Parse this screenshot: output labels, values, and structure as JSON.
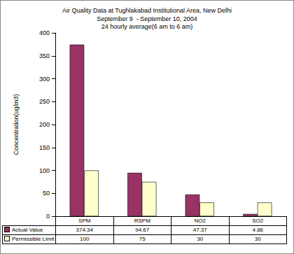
{
  "chart_data": {
    "type": "bar",
    "title": "Air Quality Data at Tughlakabad Institutional Area, New Delhi",
    "subtitle": "September 9  - September 10, 2004\n24 hourly average(6 am to 6 am)",
    "y_label": "Concentration(ug/m3)",
    "categories": [
      "SPM",
      "RSPM",
      "NO2",
      "SO2"
    ],
    "series": [
      {
        "name": "Actual Value",
        "color": "#993366",
        "values": [
          374.34,
          94.67,
          47.37,
          4.86
        ]
      },
      {
        "name": "Permissible Limit",
        "color": "#FFFFCC",
        "values": [
          100,
          75,
          30,
          30
        ]
      }
    ],
    "ylim": [
      0,
      400
    ],
    "yticks": [
      0,
      50,
      100,
      150,
      200,
      250,
      300,
      350,
      400
    ],
    "grid": false,
    "legend": "bottom"
  }
}
